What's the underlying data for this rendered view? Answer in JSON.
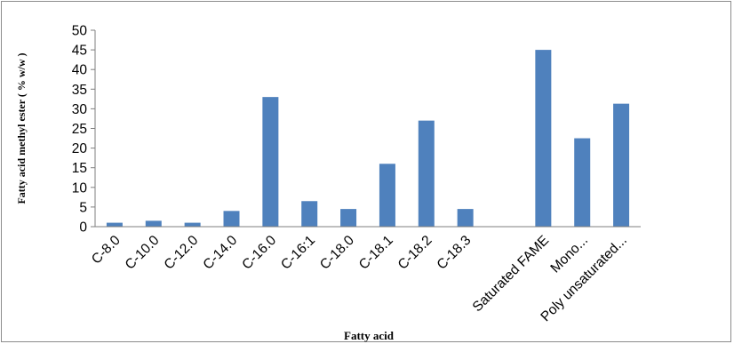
{
  "chart_data": {
    "type": "bar",
    "title": "",
    "xlabel": "Fatty acid",
    "ylabel": "Fatty acid methyl ester ( % w/w )",
    "ylim": [
      0,
      50
    ],
    "yticks": [
      "0",
      "5",
      "10",
      "15",
      "20",
      "25",
      "30",
      "35",
      "40",
      "45",
      "50"
    ],
    "categories": [
      "C-8.0",
      "C-10.0",
      "C-12.0",
      "C-14.0",
      "C-16.0",
      "C-16:1",
      "C-18.0",
      "C-18.1",
      "C-18.2",
      "C-18.3",
      "",
      "Saturated  FAME",
      "Mono...",
      "Poly unsaturated..."
    ],
    "values": [
      1.0,
      1.5,
      1.0,
      4.0,
      33.0,
      6.5,
      4.5,
      16.0,
      27.0,
      4.5,
      null,
      45.0,
      22.5,
      31.3
    ],
    "bar_color": "#4f81bd",
    "grid": false,
    "legend": "none"
  }
}
